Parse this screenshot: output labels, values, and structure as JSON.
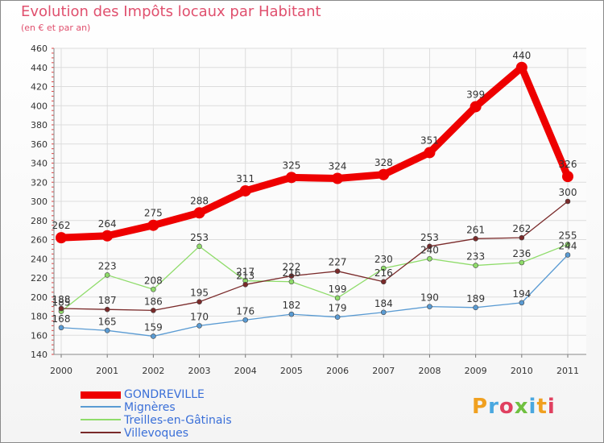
{
  "header": {
    "title": "Evolution des Impôts locaux par Habitant",
    "subtitle": "(en € et par an)"
  },
  "logo": {
    "text": "Proxiti"
  },
  "chart_data": {
    "type": "line",
    "title": "Evolution des Impôts locaux par Habitant",
    "subtitle": "(en € et par an)",
    "x": [
      "2000",
      "2001",
      "2002",
      "2003",
      "2004",
      "2005",
      "2006",
      "2007",
      "2008",
      "2009",
      "2010",
      "2011"
    ],
    "ylim": [
      140,
      460
    ],
    "yticks": [
      140,
      160,
      180,
      200,
      220,
      240,
      260,
      280,
      300,
      320,
      340,
      360,
      380,
      400,
      420,
      440,
      460
    ],
    "grid": true,
    "legend_position": "bottom-left",
    "series": [
      {
        "name": "GONDREVILLE",
        "color": "#ee0000",
        "values": [
          262,
          264,
          275,
          288,
          311,
          325,
          324,
          328,
          351,
          399,
          440,
          326
        ]
      },
      {
        "name": "Mignères",
        "color": "#5a9bd3",
        "values": [
          168,
          165,
          159,
          170,
          176,
          182,
          179,
          184,
          190,
          189,
          194,
          244
        ]
      },
      {
        "name": "Treilles-en-Gâtinais",
        "color": "#8fdc6a",
        "values": [
          185,
          223,
          208,
          253,
          217,
          216,
          199,
          230,
          240,
          233,
          236,
          255
        ]
      },
      {
        "name": "Villevoques",
        "color": "#7a2a2a",
        "values": [
          188,
          187,
          186,
          195,
          213,
          222,
          227,
          216,
          253,
          261,
          262,
          300
        ]
      }
    ]
  }
}
